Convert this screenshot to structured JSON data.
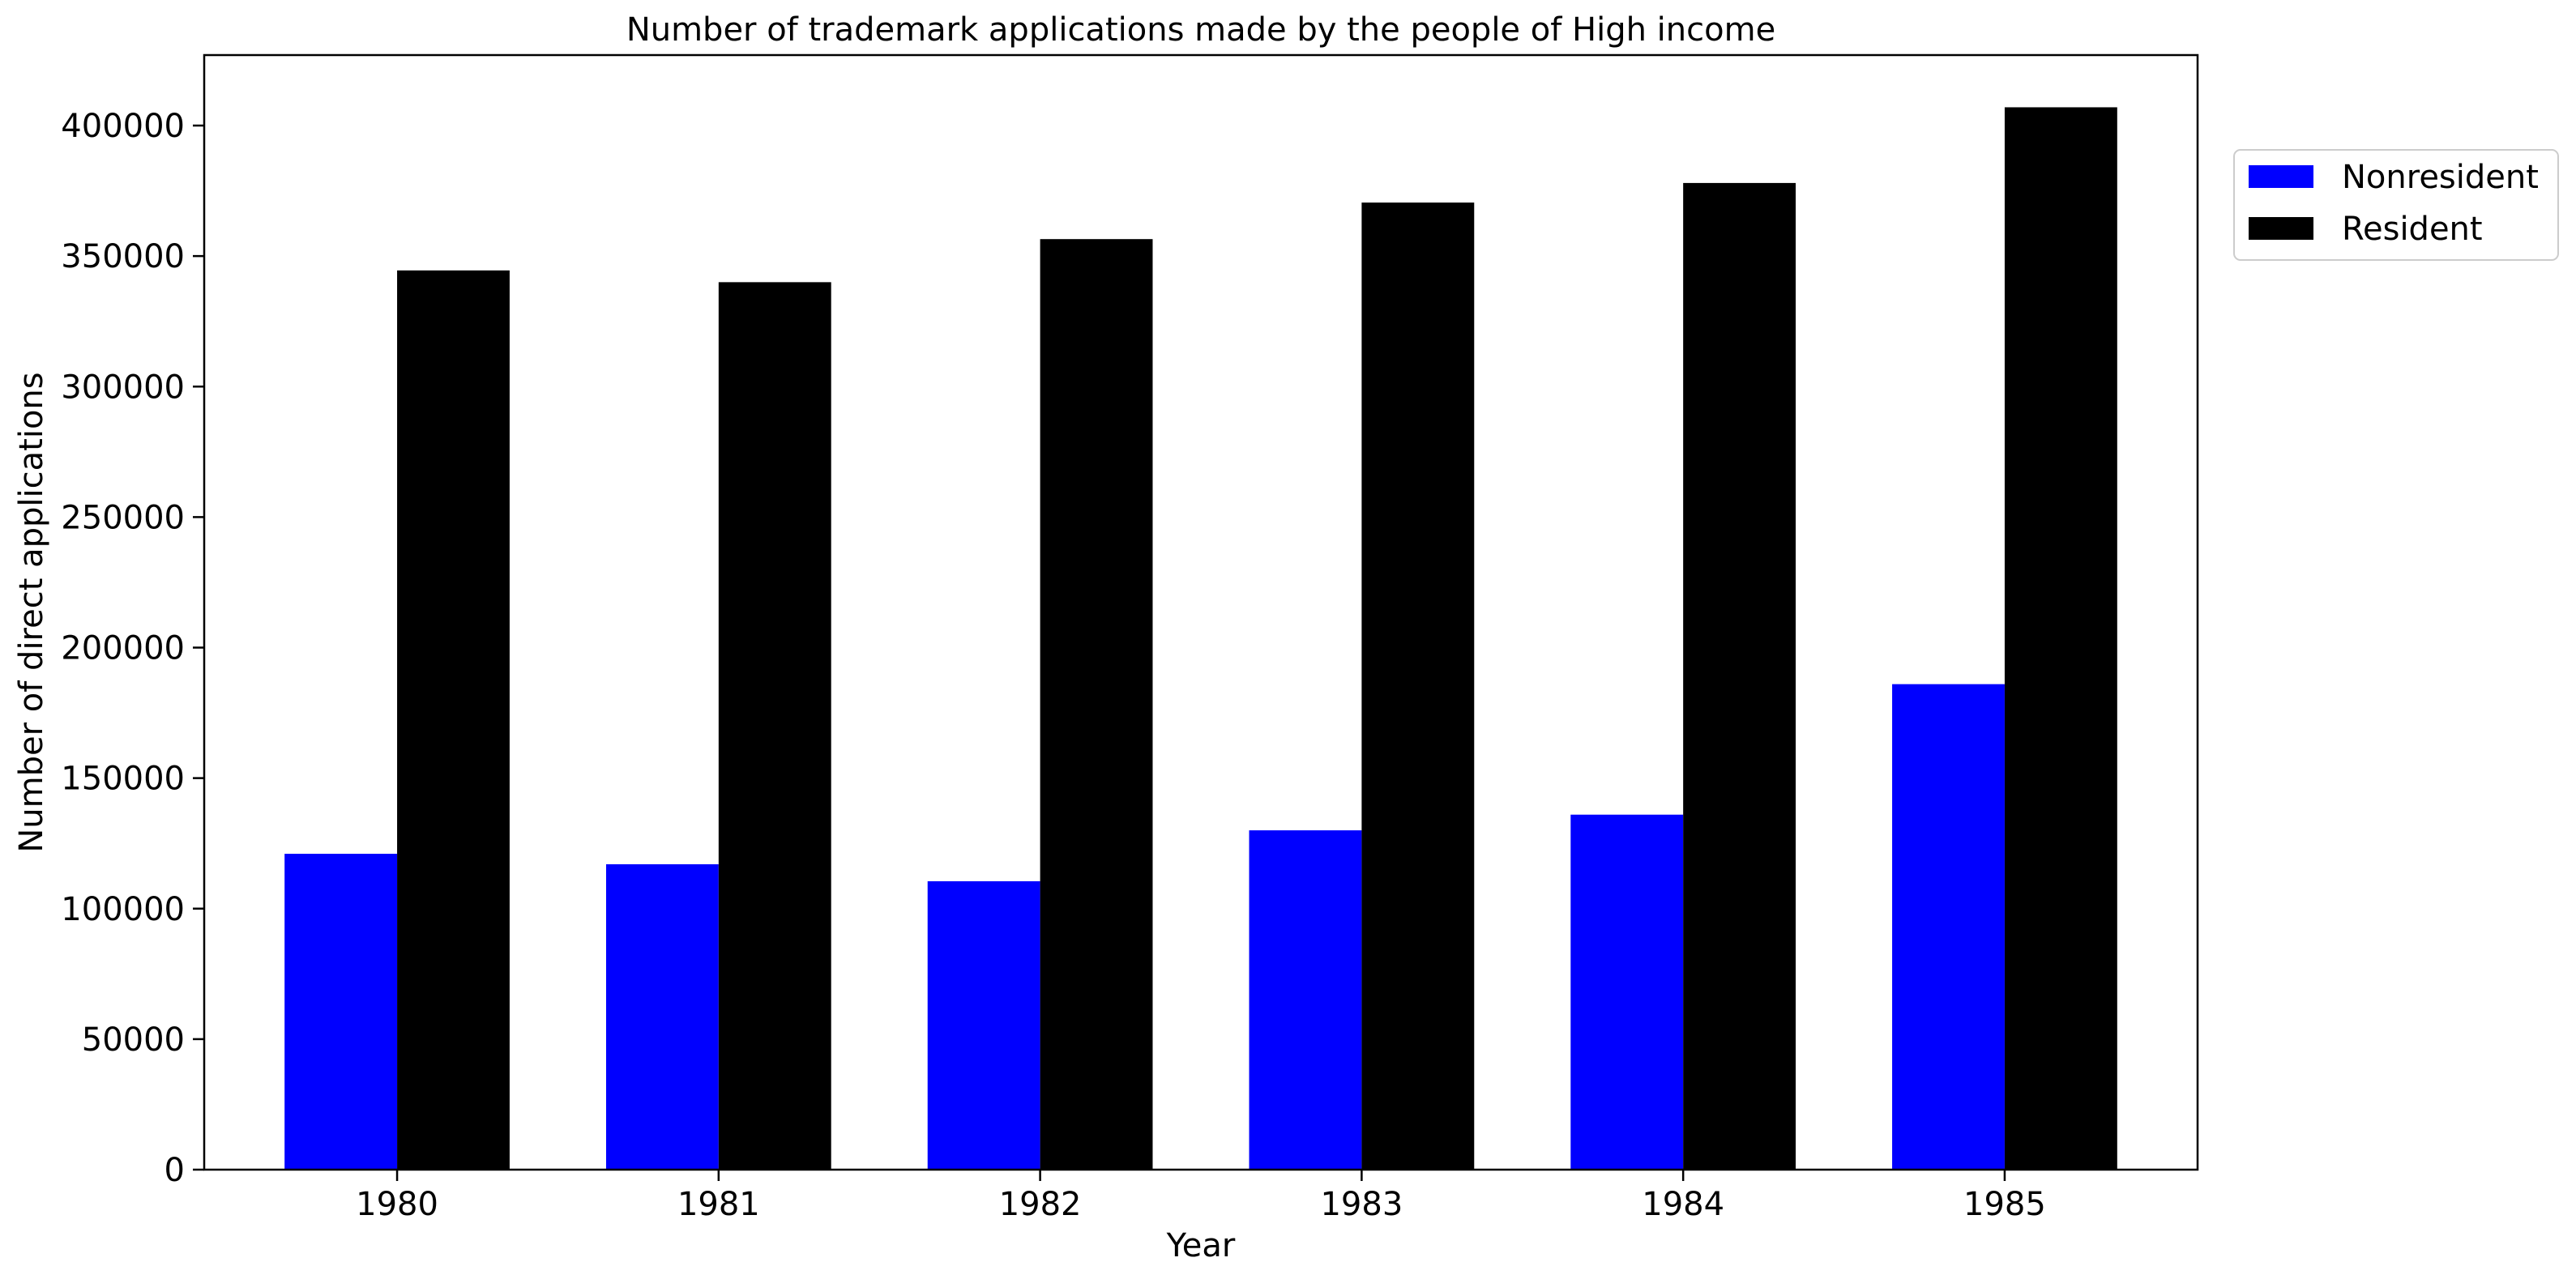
{
  "chart_data": {
    "type": "bar",
    "title": "Number of trademark applications made by the people of High income",
    "xlabel": "Year",
    "ylabel": "Number of direct applications",
    "categories": [
      "1980",
      "1981",
      "1982",
      "1983",
      "1984",
      "1985"
    ],
    "series": [
      {
        "name": "Nonresident",
        "color": "#0000ff",
        "values": [
          121000,
          117000,
          110500,
          130000,
          136000,
          186000
        ]
      },
      {
        "name": "Resident",
        "color": "#000000",
        "values": [
          344500,
          340000,
          356500,
          370500,
          378000,
          407000
        ]
      }
    ],
    "ylim": [
      0,
      427000
    ],
    "yticks": [
      0,
      50000,
      100000,
      150000,
      200000,
      250000,
      300000,
      350000,
      400000
    ],
    "ytick_labels": [
      "0",
      "50000",
      "100000",
      "150000",
      "200000",
      "250000",
      "300000",
      "350000",
      "400000"
    ],
    "grid": false,
    "legend_position": "upper-right-outside"
  }
}
